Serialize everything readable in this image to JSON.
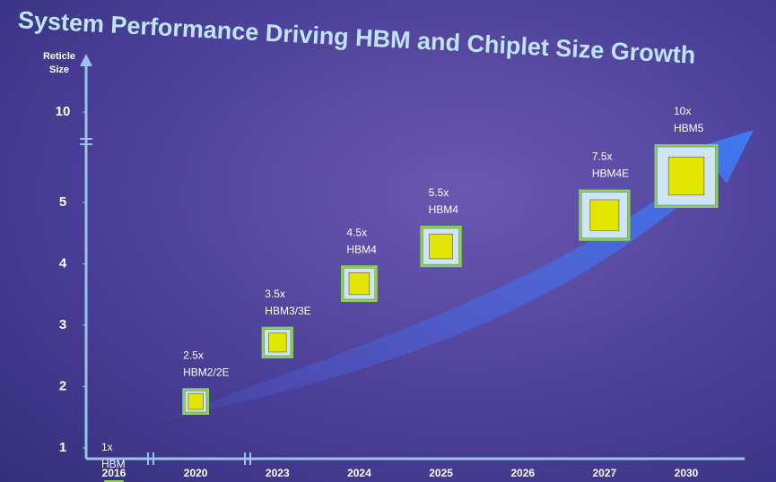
{
  "chart_data": {
    "type": "chiplet",
    "title": "System Performance Driving HBM and Chiplet Size Growth",
    "ylabel": "Reticle Size",
    "categories": [
      "2016",
      "2020",
      "2023",
      "2024",
      "2025",
      "2026",
      "2027",
      "2030"
    ],
    "values": [
      1,
      2.5,
      3.5,
      4.5,
      5.5,
      null,
      7.5,
      10
    ],
    "value_labels": [
      "1x",
      "2.5x",
      "3.5x",
      "4.5x",
      "5.5x",
      null,
      "7.5x",
      "10x"
    ],
    "memory": [
      "HBM",
      "HBM2/2E",
      "HBM3/3E",
      "HBM4",
      "HBM4",
      null,
      "HBM4E",
      "HBM5"
    ],
    "ylim": [
      1,
      10
    ],
    "yticks": [
      1,
      2,
      3,
      4,
      5,
      10
    ],
    "axis_break": 5,
    "color": "#8fd14f"
  }
}
